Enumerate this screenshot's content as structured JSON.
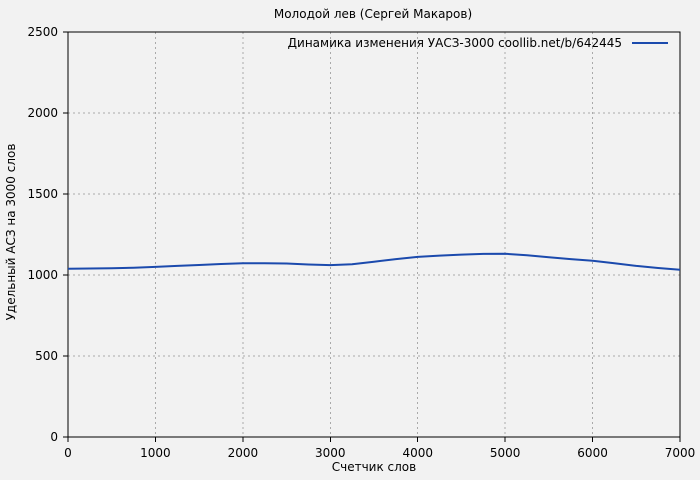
{
  "page": {
    "background": "#f2f2f2"
  },
  "chart_data": {
    "type": "line",
    "title": "Молодой лев (Сергей Макаров)",
    "xlabel": "Счетчик слов",
    "ylabel": "Удельный АСЗ на 3000 слов",
    "legend": "Динамика изменения УАСЗ-3000 coollib.net/b/642445",
    "legend_position": "top-right-inside",
    "grid": true,
    "grid_style": "dashed",
    "xlim": [
      0,
      7000
    ],
    "ylim": [
      0,
      2500
    ],
    "xticks": [
      0,
      1000,
      2000,
      3000,
      4000,
      5000,
      6000,
      7000
    ],
    "yticks": [
      0,
      500,
      1000,
      1500,
      2000,
      2500
    ],
    "series": [
      {
        "name": "Динамика изменения УАСЗ-3000 coollib.net/b/642445",
        "x": [
          0,
          250,
          500,
          750,
          1000,
          1250,
          1500,
          1750,
          2000,
          2250,
          2500,
          2750,
          3000,
          3250,
          3500,
          3750,
          4000,
          4250,
          4500,
          4750,
          5000,
          5250,
          5500,
          5750,
          6000,
          6250,
          6500,
          6750,
          7000
        ],
        "y": [
          1038,
          1040,
          1042,
          1045,
          1050,
          1056,
          1062,
          1068,
          1072,
          1073,
          1071,
          1065,
          1061,
          1066,
          1082,
          1098,
          1112,
          1120,
          1126,
          1130,
          1131,
          1122,
          1110,
          1098,
          1088,
          1072,
          1056,
          1043,
          1032
        ]
      }
    ],
    "colors": {
      "line": "#1b4aad",
      "grid": "#aaaaaa",
      "axis": "#000000",
      "text": "#000000",
      "background": "#f2f2f2"
    }
  }
}
